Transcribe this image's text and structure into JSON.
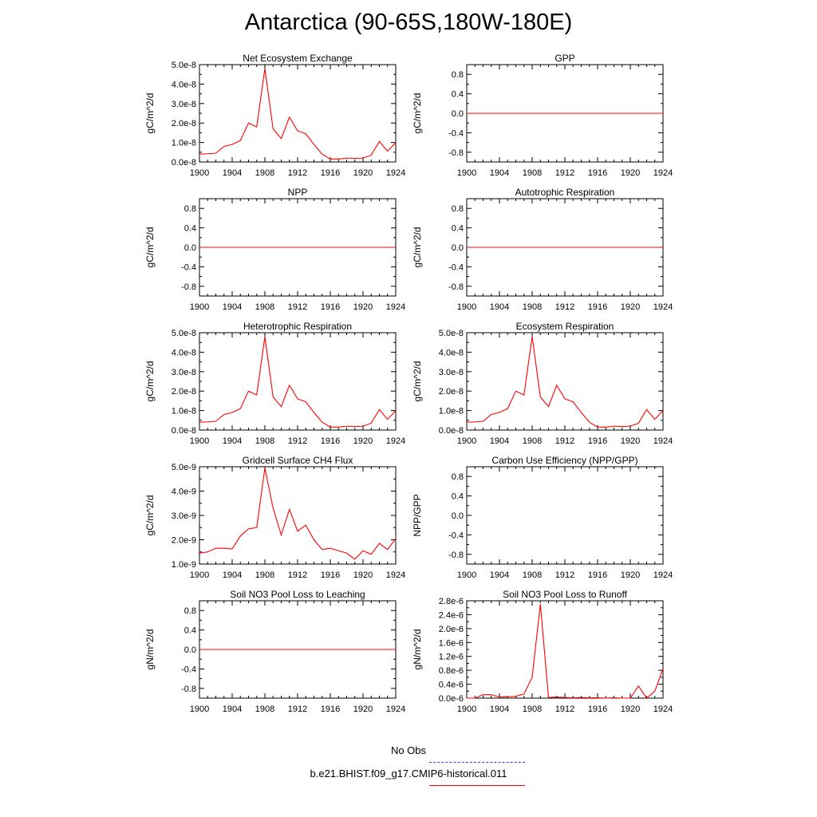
{
  "title": "Antarctica (90-65S,180W-180E)",
  "colors": {
    "model": "#ff0000",
    "obs": "#3333ff",
    "axis": "#000000"
  },
  "legend": {
    "obs_label": "No Obs",
    "model_label": "b.e21.BHIST.f09_g17.CMIP6-historical.011"
  },
  "chart_data": [
    {
      "type": "line",
      "title": "Net Ecosystem Exchange",
      "ylabel": "gC/m^2/d",
      "xlim": [
        1900,
        1924
      ],
      "ylim": [
        0,
        5e-08
      ],
      "yticks": [
        0,
        1e-08,
        2e-08,
        3e-08,
        4e-08,
        5e-08
      ],
      "ytick_labels": [
        "0.0e-8",
        "1.0e-8",
        "2.0e-8",
        "3.0e-8",
        "4.0e-8",
        "5.0e-8"
      ],
      "xticks": [
        1900,
        1904,
        1908,
        1912,
        1916,
        1920,
        1924
      ],
      "x": [
        1900,
        1901,
        1902,
        1903,
        1904,
        1905,
        1906,
        1907,
        1908,
        1909,
        1910,
        1911,
        1912,
        1913,
        1914,
        1915,
        1916,
        1917,
        1918,
        1919,
        1920,
        1921,
        1922,
        1923,
        1924
      ],
      "series": [
        {
          "name": "b.e21.BHIST.f09_g17.CMIP6-historical.011",
          "values": [
            4e-09,
            4.2e-09,
            4.5e-09,
            8e-09,
            9e-09,
            1.1e-08,
            2e-08,
            1.8e-08,
            4.8e-08,
            1.7e-08,
            1.2e-08,
            2.3e-08,
            1.6e-08,
            1.45e-08,
            9e-09,
            4e-09,
            1.5e-09,
            1.5e-09,
            2e-09,
            1.8e-09,
            2e-09,
            3.5e-09,
            1.05e-08,
            5.5e-09,
            1e-08
          ]
        }
      ]
    },
    {
      "type": "line",
      "title": "GPP",
      "ylabel": "gC/m^2/d",
      "xlim": [
        1900,
        1924
      ],
      "ylim": [
        -1,
        1
      ],
      "yticks": [
        -0.8,
        -0.4,
        0,
        0.4,
        0.8
      ],
      "ytick_labels": [
        "-0.8",
        "-0.4",
        "0.0",
        "0.4",
        "0.8"
      ],
      "xticks": [
        1900,
        1904,
        1908,
        1912,
        1916,
        1920,
        1924
      ],
      "x": [
        1900,
        1924
      ],
      "series": [
        {
          "name": "b.e21.BHIST.f09_g17.CMIP6-historical.011",
          "values": [
            0,
            0
          ]
        }
      ]
    },
    {
      "type": "line",
      "title": "NPP",
      "ylabel": "gC/m^2/d",
      "xlim": [
        1900,
        1924
      ],
      "ylim": [
        -1,
        1
      ],
      "yticks": [
        -0.8,
        -0.4,
        0,
        0.4,
        0.8
      ],
      "ytick_labels": [
        "-0.8",
        "-0.4",
        "0.0",
        "0.4",
        "0.8"
      ],
      "xticks": [
        1900,
        1904,
        1908,
        1912,
        1916,
        1920,
        1924
      ],
      "x": [
        1900,
        1924
      ],
      "series": [
        {
          "name": "b.e21.BHIST.f09_g17.CMIP6-historical.011",
          "values": [
            0,
            0
          ]
        }
      ]
    },
    {
      "type": "line",
      "title": "Autotrophic Respiration",
      "ylabel": "gC/m^2/d",
      "xlim": [
        1900,
        1924
      ],
      "ylim": [
        -1,
        1
      ],
      "yticks": [
        -0.8,
        -0.4,
        0,
        0.4,
        0.8
      ],
      "ytick_labels": [
        "-0.8",
        "-0.4",
        "0.0",
        "0.4",
        "0.8"
      ],
      "xticks": [
        1900,
        1904,
        1908,
        1912,
        1916,
        1920,
        1924
      ],
      "x": [
        1900,
        1924
      ],
      "series": [
        {
          "name": "b.e21.BHIST.f09_g17.CMIP6-historical.011",
          "values": [
            0,
            0
          ]
        }
      ]
    },
    {
      "type": "line",
      "title": "Heterotrophic Respiration",
      "ylabel": "gC/m^2/d",
      "xlim": [
        1900,
        1924
      ],
      "ylim": [
        0,
        5e-08
      ],
      "yticks": [
        0,
        1e-08,
        2e-08,
        3e-08,
        4e-08,
        5e-08
      ],
      "ytick_labels": [
        "0.0e-8",
        "1.0e-8",
        "2.0e-8",
        "3.0e-8",
        "4.0e-8",
        "5.0e-8"
      ],
      "xticks": [
        1900,
        1904,
        1908,
        1912,
        1916,
        1920,
        1924
      ],
      "x": [
        1900,
        1901,
        1902,
        1903,
        1904,
        1905,
        1906,
        1907,
        1908,
        1909,
        1910,
        1911,
        1912,
        1913,
        1914,
        1915,
        1916,
        1917,
        1918,
        1919,
        1920,
        1921,
        1922,
        1923,
        1924
      ],
      "series": [
        {
          "name": "b.e21.BHIST.f09_g17.CMIP6-historical.011",
          "values": [
            4e-09,
            4.2e-09,
            4.5e-09,
            8e-09,
            9e-09,
            1.1e-08,
            2e-08,
            1.8e-08,
            4.8e-08,
            1.7e-08,
            1.2e-08,
            2.3e-08,
            1.6e-08,
            1.45e-08,
            9e-09,
            4e-09,
            1.5e-09,
            1.5e-09,
            2e-09,
            1.8e-09,
            2e-09,
            3.5e-09,
            1.05e-08,
            5.5e-09,
            1e-08
          ]
        }
      ]
    },
    {
      "type": "line",
      "title": "Ecosystem Respiration",
      "ylabel": "gC/m^2/d",
      "xlim": [
        1900,
        1924
      ],
      "ylim": [
        0,
        5e-08
      ],
      "yticks": [
        0,
        1e-08,
        2e-08,
        3e-08,
        4e-08,
        5e-08
      ],
      "ytick_labels": [
        "0.0e-8",
        "1.0e-8",
        "2.0e-8",
        "3.0e-8",
        "4.0e-8",
        "5.0e-8"
      ],
      "xticks": [
        1900,
        1904,
        1908,
        1912,
        1916,
        1920,
        1924
      ],
      "x": [
        1900,
        1901,
        1902,
        1903,
        1904,
        1905,
        1906,
        1907,
        1908,
        1909,
        1910,
        1911,
        1912,
        1913,
        1914,
        1915,
        1916,
        1917,
        1918,
        1919,
        1920,
        1921,
        1922,
        1923,
        1924
      ],
      "series": [
        {
          "name": "b.e21.BHIST.f09_g17.CMIP6-historical.011",
          "values": [
            4e-09,
            4.2e-09,
            4.5e-09,
            8e-09,
            9e-09,
            1.1e-08,
            2e-08,
            1.8e-08,
            4.8e-08,
            1.7e-08,
            1.2e-08,
            2.3e-08,
            1.6e-08,
            1.45e-08,
            9e-09,
            4e-09,
            1.5e-09,
            1.5e-09,
            2e-09,
            1.8e-09,
            2e-09,
            3.5e-09,
            1.05e-08,
            5.5e-09,
            1e-08
          ]
        }
      ]
    },
    {
      "type": "line",
      "title": "Gridcell Surface CH4 Flux",
      "ylabel": "gC/m^2/d",
      "xlim": [
        1900,
        1924
      ],
      "ylim": [
        1e-09,
        5e-09
      ],
      "yticks": [
        1e-09,
        2e-09,
        3e-09,
        4e-09,
        5e-09
      ],
      "ytick_labels": [
        "1.0e-9",
        "2.0e-9",
        "3.0e-9",
        "4.0e-9",
        "5.0e-9"
      ],
      "xticks": [
        1900,
        1904,
        1908,
        1912,
        1916,
        1920,
        1924
      ],
      "x": [
        1900,
        1901,
        1902,
        1903,
        1904,
        1905,
        1906,
        1907,
        1908,
        1909,
        1910,
        1911,
        1912,
        1913,
        1914,
        1915,
        1916,
        1917,
        1918,
        1919,
        1920,
        1921,
        1922,
        1923,
        1924
      ],
      "series": [
        {
          "name": "b.e21.BHIST.f09_g17.CMIP6-historical.011",
          "values": [
            1.45e-09,
            1.5e-09,
            1.65e-09,
            1.65e-09,
            1.62e-09,
            2.15e-09,
            2.45e-09,
            2.5e-09,
            4.95e-09,
            3.3e-09,
            2.2e-09,
            3.25e-09,
            2.35e-09,
            2.6e-09,
            2e-09,
            1.6e-09,
            1.65e-09,
            1.55e-09,
            1.45e-09,
            1.2e-09,
            1.55e-09,
            1.4e-09,
            1.85e-09,
            1.6e-09,
            2.05e-09
          ]
        }
      ]
    },
    {
      "type": "line",
      "title": "Carbon Use Efficiency (NPP/GPP)",
      "ylabel": "NPP/GPP",
      "xlim": [
        1900,
        1924
      ],
      "ylim": [
        -1,
        1
      ],
      "yticks": [
        -0.8,
        -0.4,
        0,
        0.4,
        0.8
      ],
      "ytick_labels": [
        "-0.8",
        "-0.4",
        "0.0",
        "0.4",
        "0.8"
      ],
      "xticks": [
        1900,
        1904,
        1908,
        1912,
        1916,
        1920,
        1924
      ],
      "x": [],
      "series": []
    },
    {
      "type": "line",
      "title": "Soil NO3 Pool Loss to Leaching",
      "ylabel": "gN/m^2/d",
      "xlim": [
        1900,
        1924
      ],
      "ylim": [
        -1,
        1
      ],
      "yticks": [
        -0.8,
        -0.4,
        0,
        0.4,
        0.8
      ],
      "ytick_labels": [
        "-0.8",
        "-0.4",
        "0.0",
        "0.4",
        "0.8"
      ],
      "xticks": [
        1900,
        1904,
        1908,
        1912,
        1916,
        1920,
        1924
      ],
      "x": [
        1900,
        1924
      ],
      "series": [
        {
          "name": "b.e21.BHIST.f09_g17.CMIP6-historical.011",
          "values": [
            0,
            0
          ]
        }
      ]
    },
    {
      "type": "line",
      "title": "Soil NO3 Pool Loss to Runoff",
      "ylabel": "gN/m^2/d",
      "xlim": [
        1900,
        1924
      ],
      "ylim": [
        0,
        2.8e-06
      ],
      "yticks": [
        0,
        4e-07,
        8e-07,
        1.2e-06,
        1.6e-06,
        2e-06,
        2.4e-06,
        2.8e-06
      ],
      "ytick_labels": [
        "0.0e-6",
        "0.4e-6",
        "0.8e-6",
        "1.2e-6",
        "1.6e-6",
        "2.0e-6",
        "2.4e-6",
        "2.8e-6"
      ],
      "xticks": [
        1900,
        1904,
        1908,
        1912,
        1916,
        1920,
        1924
      ],
      "x": [
        1900,
        1901,
        1902,
        1903,
        1904,
        1905,
        1906,
        1907,
        1908,
        1909,
        1910,
        1911,
        1912,
        1913,
        1914,
        1915,
        1916,
        1917,
        1918,
        1919,
        1920,
        1921,
        1922,
        1923,
        1924
      ],
      "series": [
        {
          "name": "b.e21.BHIST.f09_g17.CMIP6-historical.011",
          "values": [
            0,
            0,
            1e-07,
            1e-07,
            3e-08,
            4e-08,
            5e-08,
            1.2e-07,
            6e-07,
            2.7e-06,
            2e-08,
            3e-08,
            2e-08,
            1e-08,
            2e-08,
            1e-08,
            1e-08,
            0,
            1e-08,
            0,
            0,
            3.5e-07,
            0,
            2e-07,
            8.5e-07
          ]
        }
      ]
    }
  ]
}
